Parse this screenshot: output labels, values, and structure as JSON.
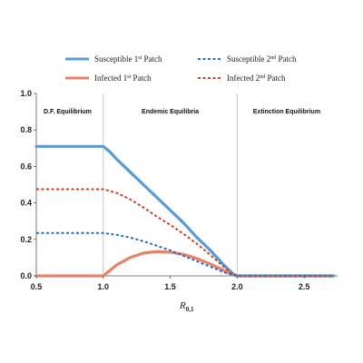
{
  "chart_data": {
    "type": "line",
    "xlabel": "R",
    "xlabel_subscript": "0,1",
    "xlim": [
      0.5,
      2.75
    ],
    "ylim": [
      0,
      1.0
    ],
    "xticks": [
      0.5,
      1.0,
      1.5,
      2.0,
      2.5
    ],
    "xtick_labels": [
      "0.5",
      "1.0",
      "1.5",
      "2.0",
      "2.5"
    ],
    "yticks": [
      0.0,
      0.2,
      0.4,
      0.6,
      0.8,
      1.0
    ],
    "ytick_labels": [
      "0.0",
      "0.2",
      "0.4",
      "0.6",
      "0.8",
      "1.0"
    ],
    "vertical_lines": [
      1.0,
      2.0
    ],
    "regions": [
      {
        "label": "D.F. Equilibrium",
        "x": 0.5
      },
      {
        "label": "Endemic Equilibria",
        "x": 1.5
      },
      {
        "label": "Extinction Equilibrium",
        "x": 2.37
      }
    ],
    "legend_position": "top",
    "series": [
      {
        "name": "Susceptible 1",
        "name_sup": "st",
        "name_suffix": " Patch",
        "color": "#5b9bd5",
        "style": "solid",
        "x": [
          0.5,
          1.0,
          1.05,
          1.1,
          1.2,
          1.3,
          1.4,
          1.5,
          1.6,
          1.7,
          1.8,
          1.9,
          1.97,
          2.0,
          2.72
        ],
        "y": [
          0.71,
          0.71,
          0.68,
          0.64,
          0.57,
          0.5,
          0.43,
          0.36,
          0.29,
          0.21,
          0.14,
          0.06,
          0.01,
          0.0,
          0.0
        ]
      },
      {
        "name": "Susceptible 2",
        "name_sup": "nd",
        "name_suffix": " Patch",
        "color": "#2a6bc4",
        "style": "dashed",
        "x": [
          0.5,
          1.0,
          1.1,
          1.2,
          1.3,
          1.4,
          1.5,
          1.6,
          1.7,
          1.8,
          1.9,
          1.97,
          2.0,
          2.72
        ],
        "y": [
          0.235,
          0.235,
          0.225,
          0.21,
          0.19,
          0.165,
          0.14,
          0.11,
          0.08,
          0.05,
          0.02,
          0.005,
          0.0,
          0.0
        ]
      },
      {
        "name": "Infected 1",
        "name_sup": "st",
        "name_suffix": " Patch",
        "color": "#e8836a",
        "style": "solid",
        "x": [
          0.5,
          1.0,
          1.1,
          1.2,
          1.3,
          1.4,
          1.5,
          1.6,
          1.7,
          1.8,
          1.9,
          1.97,
          2.0,
          2.72
        ],
        "y": [
          0.0,
          0.0,
          0.06,
          0.1,
          0.125,
          0.133,
          0.13,
          0.118,
          0.095,
          0.065,
          0.03,
          0.005,
          0.0,
          0.0
        ]
      },
      {
        "name": "Infected 2",
        "name_sup": "nd",
        "name_suffix": " Patch",
        "color": "#c8442a",
        "style": "dashed",
        "x": [
          0.5,
          1.0,
          1.1,
          1.2,
          1.3,
          1.4,
          1.5,
          1.6,
          1.7,
          1.8,
          1.9,
          1.97,
          2.0,
          2.72
        ],
        "y": [
          0.475,
          0.475,
          0.455,
          0.42,
          0.375,
          0.325,
          0.28,
          0.23,
          0.175,
          0.115,
          0.05,
          0.01,
          0.0,
          0.0
        ]
      }
    ]
  }
}
